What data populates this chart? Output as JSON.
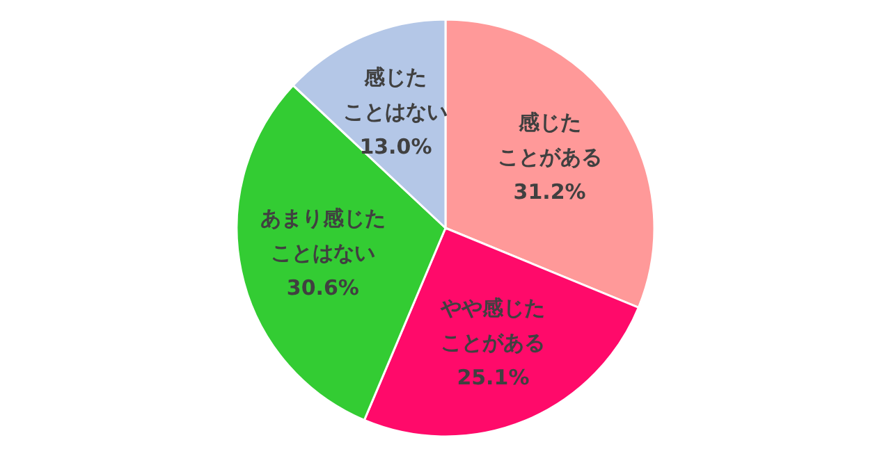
{
  "chart_data": {
    "type": "pie",
    "categories": [
      "感じたことがある",
      "やや感じたことがある",
      "あまり感じたことはない",
      "感じたことはない"
    ],
    "values": [
      31.2,
      25.1,
      30.6,
      13.0
    ],
    "value_labels": [
      "31.2%",
      "25.1%",
      "30.6%",
      "13.0%"
    ],
    "colors": [
      "#ff9999",
      "#ff0a6a",
      "#33cc33",
      "#b4c7e7"
    ],
    "legend": false
  }
}
